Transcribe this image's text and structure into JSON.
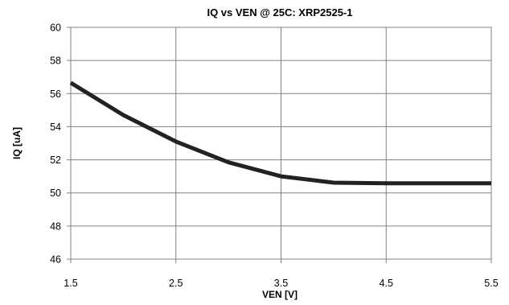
{
  "chart_data": {
    "type": "line",
    "title": "IQ vs VEN @ 25C: XRP2525-1",
    "xlabel": "VEN [V]",
    "ylabel": "IQ [uA]",
    "xlim": [
      1.5,
      5.5
    ],
    "ylim": [
      46,
      60
    ],
    "x_ticks": [
      "1.5",
      "2.5",
      "3.5",
      "4.5",
      "5.5"
    ],
    "y_ticks": [
      "46",
      "48",
      "50",
      "52",
      "54",
      "56",
      "58",
      "60"
    ],
    "grid": true,
    "line_color": "#222222",
    "grid_color": "#808080",
    "series": [
      {
        "x": [
          1.5,
          2.0,
          2.5,
          3.0,
          3.5,
          4.0,
          4.5,
          5.0,
          5.5
        ],
        "y": [
          56.65,
          54.7,
          53.1,
          51.85,
          51.0,
          50.62,
          50.58,
          50.58,
          50.58
        ]
      }
    ]
  }
}
